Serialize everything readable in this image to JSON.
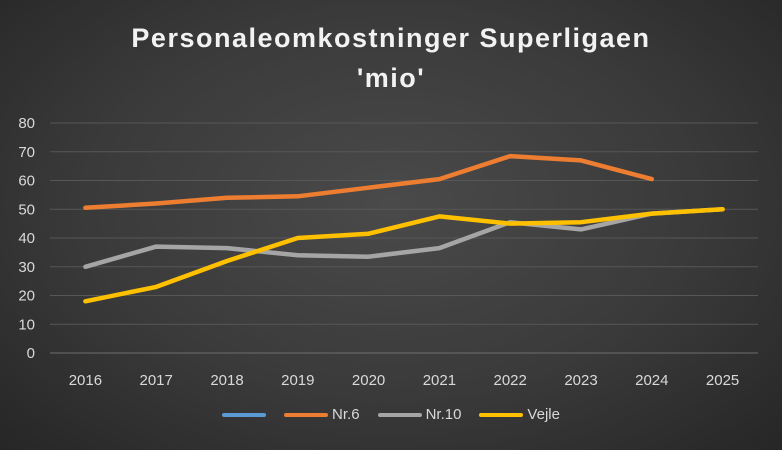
{
  "chart_data": {
    "type": "line",
    "title_line1": "Personaleomkostninger Superligaen",
    "title_line2": "'mio'",
    "categories": [
      "2016",
      "2017",
      "2018",
      "2019",
      "2020",
      "2021",
      "2022",
      "2023",
      "2024",
      "2025"
    ],
    "ylim": [
      0,
      80
    ],
    "yticks": [
      0,
      10,
      20,
      30,
      40,
      50,
      60,
      70,
      80
    ],
    "grid": true,
    "legend": "bottom",
    "series": [
      {
        "name": "",
        "color": "#5b9bd5",
        "values": [
          null,
          null,
          null,
          null,
          null,
          null,
          null,
          null,
          null,
          null
        ]
      },
      {
        "name": "Nr.6",
        "color": "#ed7d31",
        "values": [
          50.5,
          52,
          54,
          54.5,
          57.5,
          60.5,
          68.5,
          67,
          60.5,
          null
        ]
      },
      {
        "name": "Nr.10",
        "color": "#a5a5a5",
        "values": [
          30,
          37,
          36.5,
          34,
          33.5,
          36.5,
          45.5,
          43,
          48.5,
          50
        ]
      },
      {
        "name": "Vejle",
        "color": "#ffc000",
        "values": [
          18,
          23,
          32,
          40,
          41.5,
          47.5,
          45,
          45.5,
          48.5,
          50
        ]
      }
    ]
  }
}
